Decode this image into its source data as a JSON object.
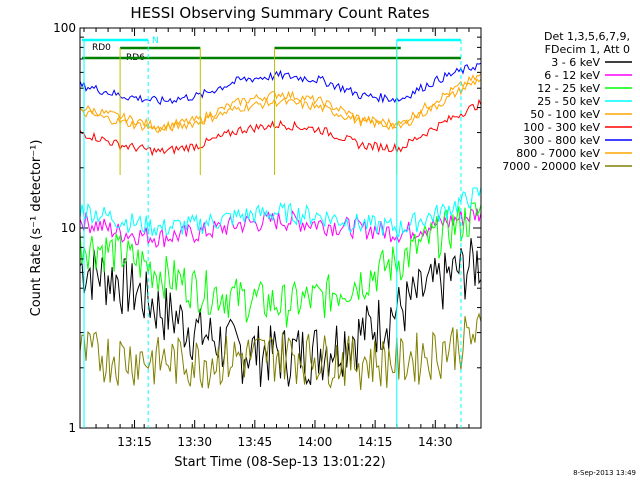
{
  "chart_data": {
    "type": "line",
    "title": "HESSI Observing Summary Count Rates",
    "xlabel": "Start Time (08-Sep-13 13:01:22)",
    "ylabel": "Count Rate (s⁻¹ detector⁻¹)",
    "yscale": "log",
    "ylim": [
      1,
      100
    ],
    "xlim_minutes": [
      0,
      100
    ],
    "x_ticks": [
      "13:15",
      "13:30",
      "13:45",
      "14:00",
      "14:15",
      "14:30"
    ],
    "y_ticks": [
      "1",
      "10",
      "100"
    ],
    "legend_header": [
      "Det 1,3,5,6,7,9,",
      "FDecim 1, Att 0"
    ],
    "legend_position": "right",
    "series": [
      {
        "name": "3 - 6 keV",
        "color": "#000000",
        "values": [
          6.5,
          5.5,
          4.0,
          3.0,
          2.5,
          2.4,
          2.5,
          3.0,
          4.0,
          5.5,
          7.0
        ]
      },
      {
        "name": "6 - 12 keV",
        "color": "#ff00ff",
        "values": [
          11.0,
          9.5,
          9.0,
          9.5,
          10.5,
          11.0,
          10.5,
          10.0,
          9.5,
          10.5,
          12.0
        ]
      },
      {
        "name": "12 - 25 keV",
        "color": "#00ff00",
        "values": [
          8.5,
          7.5,
          6.0,
          5.0,
          4.5,
          4.2,
          4.5,
          5.5,
          7.0,
          9.5,
          12.0
        ]
      },
      {
        "name": "25 - 50 keV",
        "color": "#00ffff",
        "values": [
          12.5,
          11.0,
          10.0,
          10.5,
          11.5,
          12.0,
          11.5,
          10.5,
          10.0,
          12.0,
          15.0
        ]
      },
      {
        "name": "50 - 100 keV",
        "color": "#ffa500",
        "values": [
          40,
          36,
          32,
          35,
          43,
          47,
          43,
          35,
          33,
          45,
          58
        ]
      },
      {
        "name": "100 - 300 keV",
        "color": "#ff0000",
        "values": [
          30,
          26,
          24,
          26,
          31,
          33,
          31,
          26,
          25,
          33,
          42
        ]
      },
      {
        "name": "300 - 800 keV",
        "color": "#0000ff",
        "values": [
          52,
          46,
          43,
          46,
          55,
          58,
          55,
          46,
          44,
          56,
          66
        ]
      },
      {
        "name": "800 - 7000 keV",
        "color": "#ffa500",
        "values": [
          38,
          34,
          31,
          34,
          40,
          43,
          40,
          34,
          32,
          42,
          56
        ]
      },
      {
        "name": "7000 - 20000 keV",
        "color": "#808000",
        "values": [
          2.4,
          2.3,
          2.2,
          2.2,
          2.3,
          2.4,
          2.3,
          2.2,
          2.2,
          2.5,
          3.0
        ]
      }
    ],
    "x_minutes": [
      0,
      10,
      20,
      30,
      40,
      50,
      60,
      70,
      80,
      90,
      100
    ]
  },
  "annotations": {
    "rd0_label": "RD0",
    "rd6_label": "RD6",
    "n_label": "N"
  },
  "timestamp": "8-Sep-2013 13:49"
}
